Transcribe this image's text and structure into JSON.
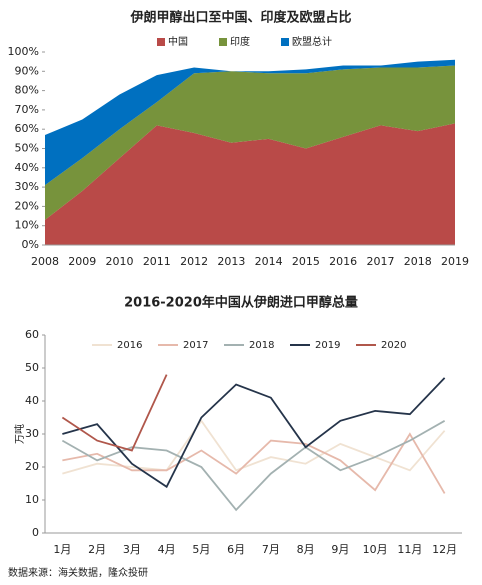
{
  "chart_data": [
    {
      "type": "stacked_area",
      "title": "伊朗甲醇出口至中国、印度及欧盟占比",
      "categories": [
        "2008",
        "2009",
        "2010",
        "2011",
        "2012",
        "2013",
        "2014",
        "2015",
        "2016",
        "2017",
        "2018",
        "2019"
      ],
      "series": [
        {
          "name": "中国",
          "color": "#b94a48",
          "values": [
            13,
            28,
            45,
            62,
            58,
            53,
            55,
            50,
            56,
            62,
            59,
            63
          ]
        },
        {
          "name": "印度",
          "color": "#77933c",
          "values": [
            18,
            17,
            15,
            12,
            31,
            37,
            34,
            39,
            35,
            30,
            33,
            30
          ]
        },
        {
          "name": "欧盟总计",
          "color": "#0070c0",
          "values": [
            26,
            20,
            18,
            14,
            3,
            0,
            1,
            2,
            2,
            1,
            3,
            3
          ]
        }
      ],
      "ylim": [
        0,
        100
      ],
      "yticks": [
        {
          "value": 0,
          "label": "0%"
        },
        {
          "value": 10,
          "label": "10%"
        },
        {
          "value": 20,
          "label": "20%"
        },
        {
          "value": 30,
          "label": "30%"
        },
        {
          "value": 40,
          "label": "40%"
        },
        {
          "value": 50,
          "label": "50%"
        },
        {
          "value": 60,
          "label": "60%"
        },
        {
          "value": 70,
          "label": "70%"
        },
        {
          "value": 80,
          "label": "80%"
        },
        {
          "value": 90,
          "label": "90%"
        },
        {
          "value": 100,
          "label": "100%"
        }
      ],
      "legend": "top"
    },
    {
      "type": "line",
      "title": "2016-2020年中国从伊朗进口甲醇总量",
      "y_label": "万吨",
      "categories": [
        "1月",
        "2月",
        "3月",
        "4月",
        "5月",
        "6月",
        "7月",
        "8月",
        "9月",
        "10月",
        "11月",
        "12月"
      ],
      "series": [
        {
          "name": "2016",
          "color": "#f0e2d2",
          "values": [
            18,
            21,
            20,
            19,
            34,
            19,
            23,
            21,
            27,
            23,
            19,
            31
          ]
        },
        {
          "name": "2017",
          "color": "#e6b9ab",
          "values": [
            22,
            24,
            19,
            19,
            25,
            18,
            28,
            27,
            22,
            13,
            30,
            12
          ]
        },
        {
          "name": "2018",
          "color": "#a3b1b1",
          "values": [
            28,
            22,
            26,
            25,
            20,
            7,
            18,
            26,
            19,
            23,
            28,
            34
          ]
        },
        {
          "name": "2019",
          "color": "#25344a",
          "values": [
            30,
            33,
            21,
            14,
            35,
            45,
            41,
            26,
            34,
            37,
            36,
            47
          ]
        },
        {
          "name": "2020",
          "color": "#b0574b",
          "values": [
            35,
            28,
            25,
            48,
            null,
            null,
            null,
            null,
            null,
            null,
            null,
            null
          ]
        }
      ],
      "ylim": [
        0,
        60
      ],
      "yticks": [
        0,
        10,
        20,
        30,
        40,
        50,
        60
      ],
      "legend": "top"
    }
  ],
  "source": "数据来源：海关数据，隆众投研"
}
